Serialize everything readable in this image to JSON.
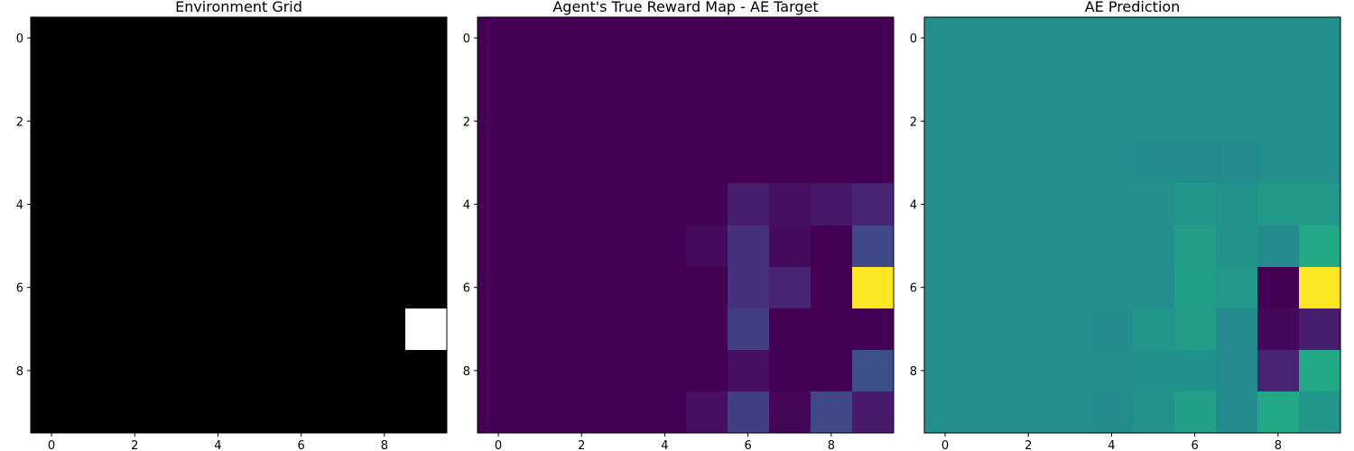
{
  "chart_data": [
    {
      "type": "heatmap",
      "title": "Environment Grid",
      "colormap": "gray",
      "vmin": 0,
      "vmax": 1,
      "x_ticks": [
        "0",
        "2",
        "4",
        "6",
        "8"
      ],
      "y_ticks": [
        "0",
        "2",
        "4",
        "6",
        "8"
      ],
      "values": [
        [
          0,
          0,
          0,
          0,
          0,
          0,
          0,
          0,
          0,
          0
        ],
        [
          0,
          0,
          0,
          0,
          0,
          0,
          0,
          0,
          0,
          0
        ],
        [
          0,
          0,
          0,
          0,
          0,
          0,
          0,
          0,
          0,
          0
        ],
        [
          0,
          0,
          0,
          0,
          0,
          0,
          0,
          0,
          0,
          0
        ],
        [
          0,
          0,
          0,
          0,
          0,
          0,
          0,
          0,
          0,
          0
        ],
        [
          0,
          0,
          0,
          0,
          0,
          0,
          0,
          0,
          0,
          0
        ],
        [
          0,
          0,
          0,
          0,
          0,
          0,
          0,
          0,
          0,
          0
        ],
        [
          0,
          0,
          0,
          0,
          0,
          0,
          0,
          0,
          0,
          1
        ],
        [
          0,
          0,
          0,
          0,
          0,
          0,
          0,
          0,
          0,
          0
        ],
        [
          0,
          0,
          0,
          0,
          0,
          0,
          0,
          0,
          0,
          0
        ]
      ]
    },
    {
      "type": "heatmap",
      "title": "Agent's True Reward Map - AE Target",
      "colormap": "viridis",
      "vmin": 0,
      "vmax": 1,
      "x_ticks": [
        "0",
        "2",
        "4",
        "6",
        "8"
      ],
      "y_ticks": [
        "0",
        "2",
        "4",
        "6",
        "8"
      ],
      "values": [
        [
          0,
          0,
          0,
          0,
          0,
          0,
          0,
          0,
          0,
          0
        ],
        [
          0,
          0,
          0,
          0,
          0,
          0,
          0,
          0,
          0,
          0
        ],
        [
          0,
          0,
          0,
          0,
          0,
          0,
          0,
          0,
          0,
          0
        ],
        [
          0,
          0,
          0,
          0,
          0,
          0,
          0,
          0,
          0,
          0
        ],
        [
          0,
          0,
          0,
          0,
          0,
          0,
          0.08,
          0.04,
          0.06,
          0.1
        ],
        [
          0,
          0,
          0,
          0,
          0,
          0.03,
          0.14,
          0.03,
          0,
          0.22
        ],
        [
          0,
          0,
          0,
          0,
          0,
          0,
          0.14,
          0.1,
          0,
          1
        ],
        [
          0,
          0,
          0,
          0,
          0,
          0,
          0.18,
          0,
          0,
          0
        ],
        [
          0,
          0,
          0,
          0,
          0,
          0,
          0.04,
          0,
          0,
          0.24
        ],
        [
          0,
          0,
          0,
          0,
          0,
          0.04,
          0.18,
          0.01,
          0.22,
          0.07
        ]
      ]
    },
    {
      "type": "heatmap",
      "title": "AE Prediction",
      "colormap": "viridis",
      "vmin": 0,
      "vmax": 1,
      "x_ticks": [
        "0",
        "2",
        "4",
        "6",
        "8"
      ],
      "y_ticks": [
        "0",
        "2",
        "4",
        "6",
        "8"
      ],
      "values": [
        [
          0.49,
          0.49,
          0.49,
          0.49,
          0.49,
          0.49,
          0.49,
          0.49,
          0.49,
          0.49
        ],
        [
          0.49,
          0.49,
          0.49,
          0.49,
          0.49,
          0.49,
          0.49,
          0.49,
          0.49,
          0.49
        ],
        [
          0.49,
          0.49,
          0.49,
          0.49,
          0.49,
          0.49,
          0.49,
          0.49,
          0.49,
          0.49
        ],
        [
          0.49,
          0.49,
          0.49,
          0.49,
          0.49,
          0.48,
          0.48,
          0.47,
          0.49,
          0.49
        ],
        [
          0.49,
          0.49,
          0.49,
          0.49,
          0.49,
          0.49,
          0.52,
          0.51,
          0.54,
          0.54
        ],
        [
          0.49,
          0.49,
          0.49,
          0.49,
          0.49,
          0.49,
          0.55,
          0.51,
          0.47,
          0.6
        ],
        [
          0.49,
          0.49,
          0.49,
          0.49,
          0.49,
          0.49,
          0.56,
          0.53,
          0,
          1
        ],
        [
          0.49,
          0.49,
          0.49,
          0.49,
          0.48,
          0.52,
          0.55,
          0.47,
          0.02,
          0.08
        ],
        [
          0.49,
          0.49,
          0.49,
          0.49,
          0.49,
          0.5,
          0.5,
          0.47,
          0.1,
          0.6
        ],
        [
          0.49,
          0.49,
          0.49,
          0.49,
          0.48,
          0.51,
          0.56,
          0.48,
          0.6,
          0.52
        ]
      ]
    }
  ]
}
